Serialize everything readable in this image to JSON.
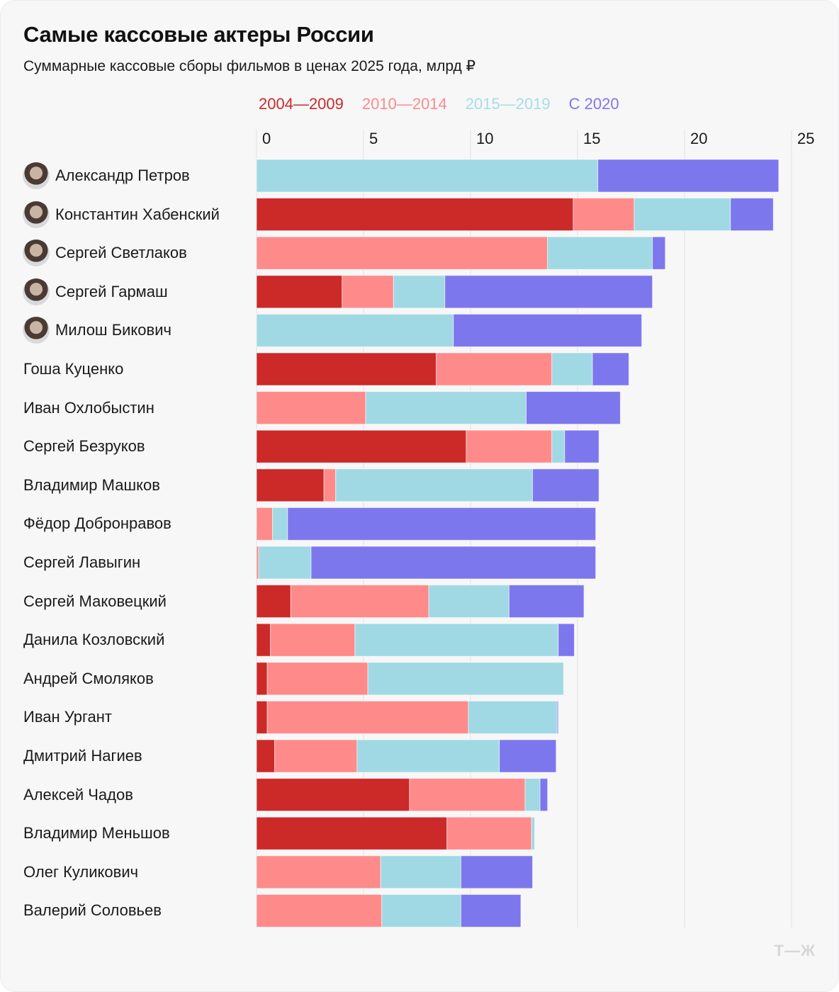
{
  "chart_data": {
    "type": "bar",
    "orientation": "horizontal",
    "stacked": true,
    "title": "Самые кассовые актеры России",
    "subtitle": "Суммарные кассовые сборы фильмов в ценах 2025 года, млрд ₽",
    "xlabel": "",
    "ylabel": "",
    "xlim": [
      0,
      25
    ],
    "xticks": [
      "0",
      "5",
      "10",
      "15",
      "20",
      "25"
    ],
    "grid": true,
    "legend_position": "top",
    "series": [
      {
        "name": "2004—2009",
        "color": "#cc2929"
      },
      {
        "name": "2010—2014",
        "color": "#ff8a8a"
      },
      {
        "name": "2015—2019",
        "color": "#a0d9e4"
      },
      {
        "name": "С 2020",
        "color": "#7d77ee"
      }
    ],
    "categories": [
      "Александр Петров",
      "Константин Хабенский",
      "Сергей Светлаков",
      "Сергей Гармаш",
      "Милош Бикович",
      "Гоша Куценко",
      "Иван Охлобыстин",
      "Сергей Безруков",
      "Владимир Машков",
      "Фёдор Добронравов",
      "Сергей Лавыгин",
      "Сергей Маковецкий",
      "Данила Козловский",
      "Андрей Смоляков",
      "Иван Ургант",
      "Дмитрий Нагиев",
      "Алексей Чадов",
      "Владимир Меньшов",
      "Олег Куликович",
      "Валерий Соловьев"
    ],
    "avatars": [
      true,
      true,
      true,
      true,
      true,
      false,
      false,
      false,
      false,
      false,
      false,
      false,
      false,
      false,
      false,
      false,
      false,
      false,
      false,
      false
    ],
    "values": [
      [
        0.0,
        0.0,
        15.95,
        8.45
      ],
      [
        14.8,
        2.85,
        4.5,
        2.0
      ],
      [
        0.0,
        13.6,
        4.9,
        0.6
      ],
      [
        4.0,
        2.4,
        2.4,
        9.7
      ],
      [
        0.0,
        0.0,
        9.2,
        8.8
      ],
      [
        8.4,
        5.4,
        1.9,
        1.7
      ],
      [
        0.0,
        5.1,
        7.5,
        4.4
      ],
      [
        9.8,
        4.0,
        0.6,
        1.6
      ],
      [
        3.15,
        0.55,
        9.2,
        3.1
      ],
      [
        0.0,
        0.75,
        0.7,
        14.4
      ],
      [
        0.0,
        0.1,
        2.45,
        13.3
      ],
      [
        1.6,
        6.45,
        3.75,
        3.5
      ],
      [
        0.65,
        3.95,
        9.5,
        0.75
      ],
      [
        0.5,
        4.7,
        9.15,
        0.0
      ],
      [
        0.5,
        9.4,
        4.15,
        0.05
      ],
      [
        0.85,
        3.85,
        6.65,
        2.65
      ],
      [
        7.15,
        5.4,
        0.7,
        0.35
      ],
      [
        8.9,
        3.95,
        0.15,
        0.0
      ],
      [
        0.0,
        5.8,
        3.75,
        3.35
      ],
      [
        0.0,
        5.85,
        3.7,
        2.8
      ]
    ]
  },
  "logo": "Т—Ж"
}
